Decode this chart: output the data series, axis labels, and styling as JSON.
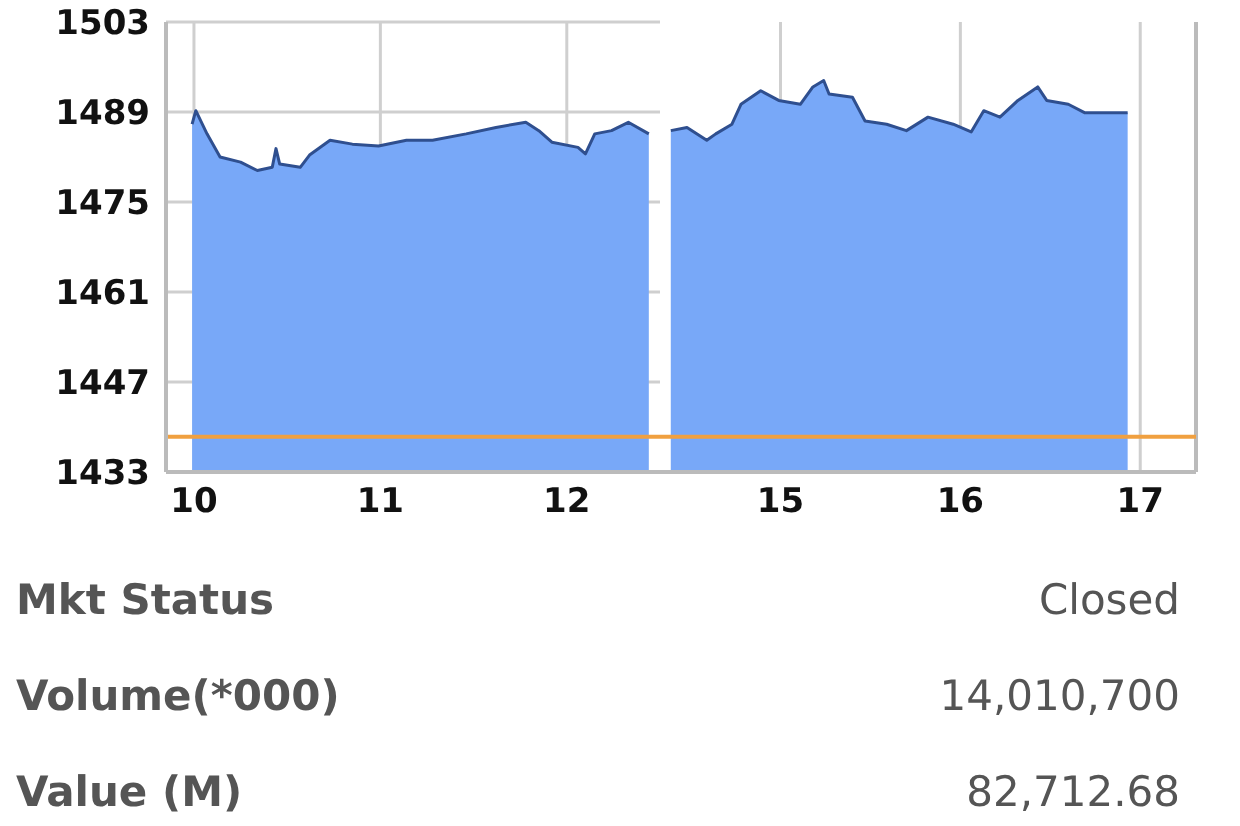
{
  "chart_data": [
    {
      "type": "area",
      "color": "#78a8f8",
      "x": [
        9.99,
        10.01,
        10.07,
        10.14,
        10.25,
        10.34,
        10.42,
        10.44,
        10.46,
        10.57,
        10.62,
        10.73,
        10.85,
        10.99,
        11.14,
        11.28,
        11.46,
        11.62,
        11.78,
        11.85,
        11.92,
        12.06,
        12.1,
        12.15,
        12.24,
        12.33,
        12.44
      ],
      "values": [
        1487.1,
        1489.2,
        1485.6,
        1482.0,
        1481.2,
        1479.9,
        1480.4,
        1483.3,
        1480.9,
        1480.4,
        1482.3,
        1484.6,
        1484.0,
        1483.7,
        1484.6,
        1484.6,
        1485.6,
        1486.6,
        1487.4,
        1486.1,
        1484.3,
        1483.5,
        1482.5,
        1485.6,
        1486.1,
        1487.4,
        1485.6
      ],
      "xlim": [
        9.85,
        12.5
      ],
      "xticks": [
        10,
        11,
        12
      ],
      "ylim": [
        1433,
        1503
      ],
      "yticks": [
        1433,
        1447,
        1461,
        1475,
        1489,
        1503
      ],
      "grid": true,
      "ref_lines": [
        {
          "axis": "y",
          "value": 1438.5,
          "color": "#f0a040"
        }
      ],
      "annotations": [
        "Mkt Status",
        "Closed",
        "Volume(*000)",
        "14,010,700",
        "Value (M)",
        "82,712.68"
      ]
    },
    {
      "type": "area",
      "color": "#78a8f8",
      "x": [
        14.39,
        14.48,
        14.59,
        14.64,
        14.73,
        14.78,
        14.89,
        14.99,
        15.11,
        15.18,
        15.24,
        15.27,
        15.4,
        15.47,
        15.59,
        15.7,
        15.82,
        15.96,
        16.06,
        16.13,
        16.22,
        16.32,
        16.43,
        16.48,
        16.6,
        16.69,
        16.93
      ],
      "values": [
        1486.1,
        1486.6,
        1484.6,
        1485.6,
        1487.1,
        1490.2,
        1492.3,
        1490.8,
        1490.2,
        1492.9,
        1493.9,
        1491.8,
        1491.3,
        1487.6,
        1487.1,
        1486.1,
        1488.2,
        1487.1,
        1485.9,
        1489.2,
        1488.2,
        1490.8,
        1492.9,
        1490.8,
        1490.2,
        1488.9,
        1488.9
      ],
      "xlim": [
        14.33,
        17.31
      ],
      "xticks": [
        15,
        16,
        17
      ],
      "ylim": [
        1433,
        1503
      ],
      "yticks": [
        1433,
        1447,
        1461,
        1475,
        1489,
        1503
      ],
      "grid": true,
      "tick_labels": "x",
      "ref_lines": [
        {
          "axis": "y",
          "value": 1438.5,
          "color": "#f0a040"
        }
      ]
    }
  ]
}
